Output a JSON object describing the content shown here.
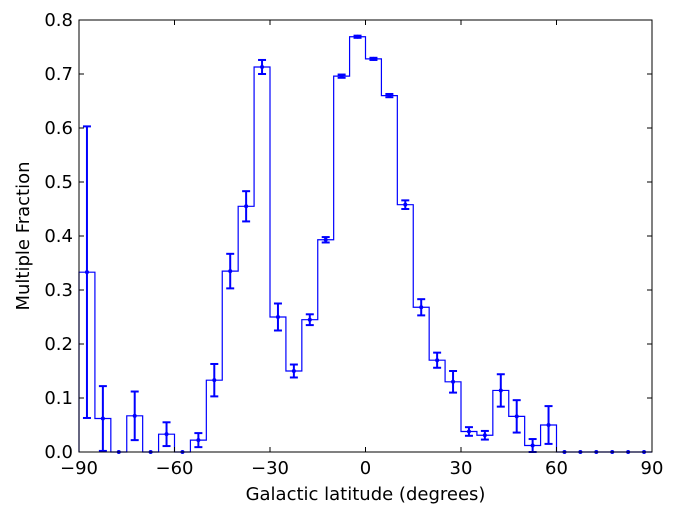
{
  "chart_data": {
    "type": "histogram",
    "title": "",
    "xlabel": "Galactic latitude (degrees)",
    "ylabel": "Multiple Fraction",
    "xlim": [
      -90,
      90
    ],
    "ylim": [
      0.0,
      0.8
    ],
    "grid": false,
    "legend": "none",
    "color": "#0000ff",
    "xticks": [
      -90,
      -60,
      -30,
      0,
      30,
      60,
      90
    ],
    "xtick_labels": [
      "−90",
      "−60",
      "−30",
      "0",
      "30",
      "60",
      "90"
    ],
    "yticks": [
      0.0,
      0.1,
      0.2,
      0.3,
      0.4,
      0.5,
      0.6,
      0.7,
      0.8
    ],
    "ytick_labels": [
      "0.0",
      "0.1",
      "0.2",
      "0.3",
      "0.4",
      "0.5",
      "0.6",
      "0.7",
      "0.8"
    ],
    "bin_edges": [
      -90,
      -85,
      -80,
      -75,
      -70,
      -65,
      -60,
      -55,
      -50,
      -45,
      -40,
      -35,
      -30,
      -25,
      -20,
      -15,
      -10,
      -5,
      0,
      5,
      10,
      15,
      20,
      25,
      30,
      35,
      40,
      45,
      50,
      55,
      60,
      65,
      70,
      75,
      80,
      85,
      90
    ],
    "bin_centers": [
      -87.5,
      -82.5,
      -77.5,
      -72.5,
      -67.5,
      -62.5,
      -57.5,
      -52.5,
      -47.5,
      -42.5,
      -37.5,
      -32.5,
      -27.5,
      -22.5,
      -17.5,
      -12.5,
      -7.5,
      -2.5,
      2.5,
      7.5,
      12.5,
      17.5,
      22.5,
      27.5,
      32.5,
      37.5,
      42.5,
      47.5,
      52.5,
      57.5,
      62.5,
      67.5,
      72.5,
      77.5,
      82.5,
      87.5
    ],
    "values": [
      0.333,
      0.062,
      0.0,
      0.067,
      0.0,
      0.033,
      0.0,
      0.022,
      0.133,
      0.335,
      0.455,
      0.713,
      0.25,
      0.15,
      0.245,
      0.393,
      0.696,
      0.769,
      0.728,
      0.66,
      0.458,
      0.268,
      0.17,
      0.13,
      0.038,
      0.031,
      0.114,
      0.066,
      0.012,
      0.05,
      0.0,
      0.0,
      0.0,
      0.0,
      0.0,
      0.0
    ],
    "errors": [
      0.27,
      0.06,
      0.0,
      0.045,
      0.0,
      0.022,
      0.0,
      0.013,
      0.03,
      0.032,
      0.028,
      0.013,
      0.025,
      0.012,
      0.01,
      0.005,
      0.003,
      0.002,
      0.002,
      0.003,
      0.008,
      0.015,
      0.014,
      0.02,
      0.008,
      0.008,
      0.03,
      0.03,
      0.012,
      0.035,
      0.0,
      0.0,
      0.0,
      0.0,
      0.0,
      0.0
    ]
  }
}
